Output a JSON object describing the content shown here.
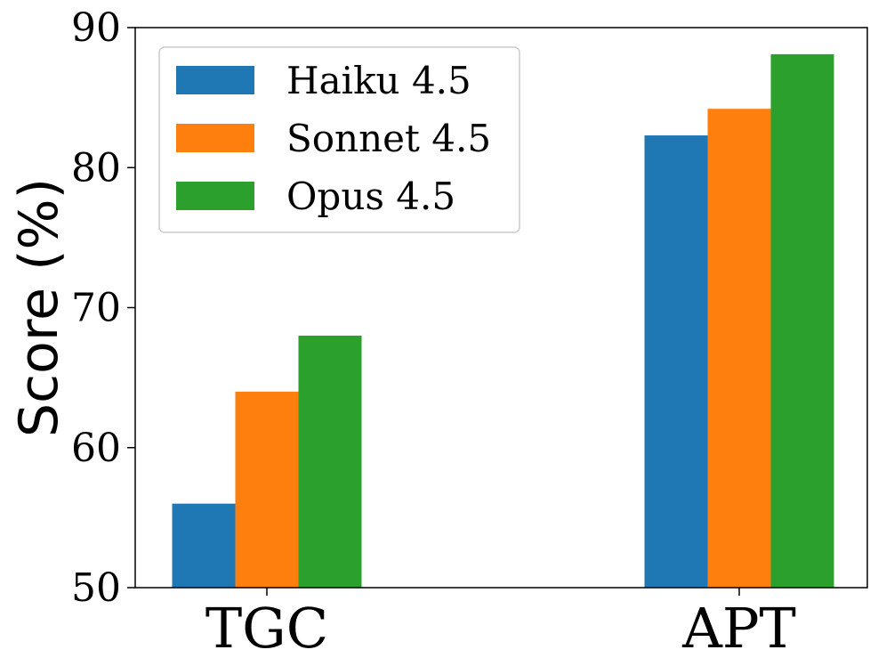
{
  "chart_data": {
    "type": "bar",
    "categories": [
      "TGC",
      "APT"
    ],
    "series": [
      {
        "name": "Haiku 4.5",
        "values": [
          56.0,
          82.3
        ],
        "color": "#1f77b4"
      },
      {
        "name": "Sonnet 4.5",
        "values": [
          64.0,
          84.2
        ],
        "color": "#ff7f0e"
      },
      {
        "name": "Opus 4.5",
        "values": [
          68.0,
          88.1
        ],
        "color": "#2ca02c"
      }
    ],
    "title": "",
    "xlabel": "",
    "ylabel": "Score (%)",
    "ylim": [
      50,
      90
    ],
    "yticks": [
      50,
      60,
      70,
      80,
      90
    ],
    "grid": false,
    "legend_position": "top-left"
  }
}
